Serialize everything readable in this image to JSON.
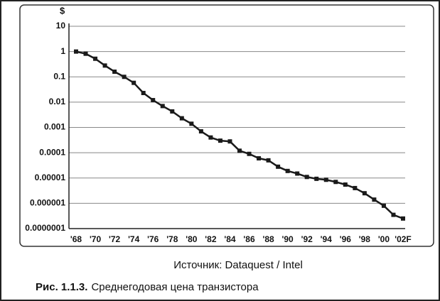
{
  "chart_data": {
    "type": "line",
    "y_label": "$",
    "log_y": true,
    "grid": true,
    "categories": [
      "'68",
      null,
      "'70",
      null,
      "'72",
      null,
      "'74",
      null,
      "'76",
      null,
      "'78",
      null,
      "'80",
      null,
      "'82",
      null,
      "'84",
      null,
      "'86",
      null,
      "'88",
      null,
      "'90",
      null,
      "'92",
      null,
      "'94",
      null,
      "'96",
      null,
      "'98",
      null,
      "'00",
      null,
      "'02F"
    ],
    "series": [
      {
        "name": "price",
        "color": "#1a1a1a",
        "values": [
          1,
          0.82,
          0.52,
          0.28,
          0.16,
          0.1,
          0.058,
          0.023,
          0.012,
          0.007,
          0.0043,
          0.0023,
          0.0014,
          0.0007,
          0.0004,
          0.0003,
          0.00028,
          0.00012,
          9e-05,
          6e-05,
          5e-05,
          2.8e-05,
          1.9e-05,
          1.5e-05,
          1.1e-05,
          9.3e-06,
          8.5e-06,
          7e-06,
          5.5e-06,
          4e-06,
          2.5e-06,
          1.4e-06,
          8e-07,
          3.5e-07,
          2.5e-07
        ]
      }
    ],
    "ylim": [
      1e-07,
      10
    ],
    "yticks": [
      10,
      1,
      0.1,
      0.01,
      0.001,
      0.0001,
      1e-05,
      1e-06,
      {
        "value": 1e-07,
        "label": "0.0000001"
      }
    ],
    "source": "Источник: Dataquest / Intel",
    "caption_label": "Рис. 1.1.3.",
    "caption": "Среднегодовая цена транзистора"
  }
}
